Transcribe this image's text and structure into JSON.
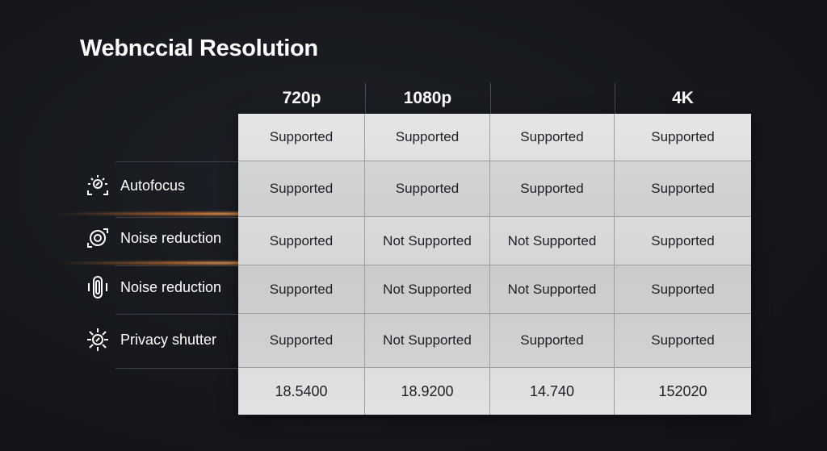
{
  "title": "Webnccial Resolution",
  "columns": [
    "720p",
    "1080p",
    "",
    "4K"
  ],
  "rows": [
    {
      "label": "",
      "icon": "",
      "cells": [
        "Supported",
        "Supported",
        "Supported",
        "Supported"
      ]
    },
    {
      "label": "Autofocus",
      "icon": "autofocus-icon",
      "cells": [
        "Supported",
        "Supported",
        "Supported",
        "Supported"
      ]
    },
    {
      "label": "Noise reduction",
      "icon": "lens-icon",
      "cells": [
        "Supported",
        "Not Supported",
        "Not Supported",
        "Supported"
      ]
    },
    {
      "label": "Noise reduction",
      "icon": "microphone-icon",
      "cells": [
        "Supported",
        "Not Supported",
        "Not Supported",
        "Supported"
      ]
    },
    {
      "label": "Privacy shutter",
      "icon": "shutter-icon",
      "cells": [
        "Supported",
        "Not Supported",
        "Supported",
        "Supported"
      ]
    },
    {
      "label": "",
      "icon": "",
      "cells": [
        "18.5400",
        "18.9200",
        "14.740",
        "152020"
      ]
    }
  ],
  "colors": {
    "background": "#15171b",
    "cell": "#e0e1e3",
    "glow": "#f08a3a"
  }
}
